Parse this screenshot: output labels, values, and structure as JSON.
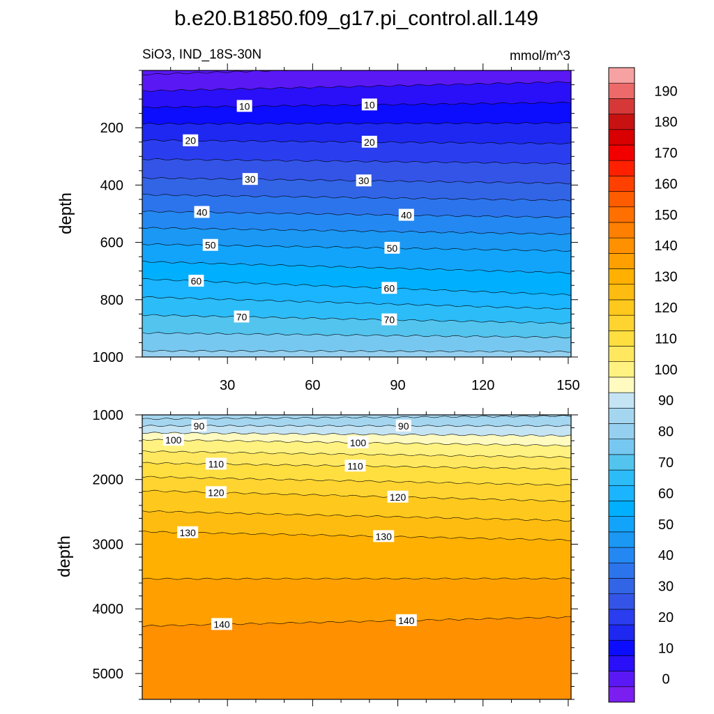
{
  "chart_data": {
    "type": "contour",
    "title": "b.e20.B1850.f09_g17.pi_control.all.149",
    "variable": "SiO3, IND_18S-30N",
    "units": "mmol/m^3",
    "x": {
      "ticks": [
        30,
        60,
        90,
        120,
        150
      ],
      "range": [
        0,
        151
      ]
    },
    "panels": [
      {
        "name": "upper",
        "ylabel": "depth",
        "y_range": [
          0,
          1000
        ],
        "y_ticks": [
          200,
          400,
          600,
          800,
          1000
        ],
        "y_reversed": true,
        "contour_levels": [
          0,
          5,
          10,
          15,
          20,
          25,
          30,
          35,
          40,
          45,
          50,
          55,
          60,
          65,
          70,
          75,
          80,
          85
        ],
        "contour_labels": [
          {
            "value": "10",
            "x": 36,
            "depth": 125
          },
          {
            "value": "10",
            "x": 80,
            "depth": 120
          },
          {
            "value": "20",
            "x": 17,
            "depth": 245
          },
          {
            "value": "20",
            "x": 80,
            "depth": 250
          },
          {
            "value": "30",
            "x": 38,
            "depth": 380
          },
          {
            "value": "30",
            "x": 78,
            "depth": 385
          },
          {
            "value": "40",
            "x": 21,
            "depth": 495
          },
          {
            "value": "40",
            "x": 93,
            "depth": 505
          },
          {
            "value": "50",
            "x": 24,
            "depth": 610
          },
          {
            "value": "50",
            "x": 88,
            "depth": 620
          },
          {
            "value": "60",
            "x": 19,
            "depth": 735
          },
          {
            "value": "60",
            "x": 87,
            "depth": 760
          },
          {
            "value": "70",
            "x": 35,
            "depth": 860
          },
          {
            "value": "70",
            "x": 87,
            "depth": 870
          }
        ]
      },
      {
        "name": "lower",
        "ylabel": "depth",
        "y_range": [
          1000,
          5400
        ],
        "y_ticks": [
          1000,
          2000,
          3000,
          4000,
          5000
        ],
        "y_reversed": true,
        "contour_levels": [
          85,
          90,
          95,
          100,
          105,
          110,
          115,
          120,
          125,
          130,
          135,
          140
        ],
        "contour_labels": [
          {
            "value": "90",
            "x": 20,
            "depth": 1170
          },
          {
            "value": "90",
            "x": 92,
            "depth": 1170
          },
          {
            "value": "100",
            "x": 11,
            "depth": 1390
          },
          {
            "value": "100",
            "x": 76,
            "depth": 1430
          },
          {
            "value": "110",
            "x": 26,
            "depth": 1760
          },
          {
            "value": "110",
            "x": 75,
            "depth": 1790
          },
          {
            "value": "120",
            "x": 26,
            "depth": 2200
          },
          {
            "value": "120",
            "x": 90,
            "depth": 2270
          },
          {
            "value": "130",
            "x": 16,
            "depth": 2820
          },
          {
            "value": "130",
            "x": 85,
            "depth": 2880
          },
          {
            "value": "140",
            "x": 28,
            "depth": 4240
          },
          {
            "value": "140",
            "x": 93,
            "depth": 4180
          }
        ]
      }
    ],
    "colorbar": {
      "labels": [
        "0",
        "10",
        "20",
        "30",
        "40",
        "50",
        "60",
        "70",
        "80",
        "90",
        "100",
        "110",
        "120",
        "130",
        "140",
        "150",
        "160",
        "170",
        "180",
        "190"
      ],
      "colors": [
        "#7b1ef0",
        "#5a18f5",
        "#2a10f8",
        "#0c0cff",
        "#1e28f0",
        "#2a3ef0",
        "#3354e6",
        "#3264e6",
        "#2c74ec",
        "#2488f2",
        "#1a98f4",
        "#12a4fa",
        "#00b0ff",
        "#1ab4ff",
        "#2cbcf8",
        "#52c4ee",
        "#76c8f0",
        "#96d0f0",
        "#a4d6f0",
        "#c4e4f4",
        "#fffac0",
        "#fff280",
        "#ffe860",
        "#ffde40",
        "#ffd430",
        "#ffc81c",
        "#ffbc10",
        "#ffb000",
        "#ffa000",
        "#ff9000",
        "#ff8000",
        "#ff7000",
        "#ff5c00",
        "#ff4000",
        "#ff2000",
        "#f20000",
        "#d80000",
        "#c81212",
        "#d63838",
        "#ec6a6a",
        "#f6a2a2"
      ]
    }
  }
}
